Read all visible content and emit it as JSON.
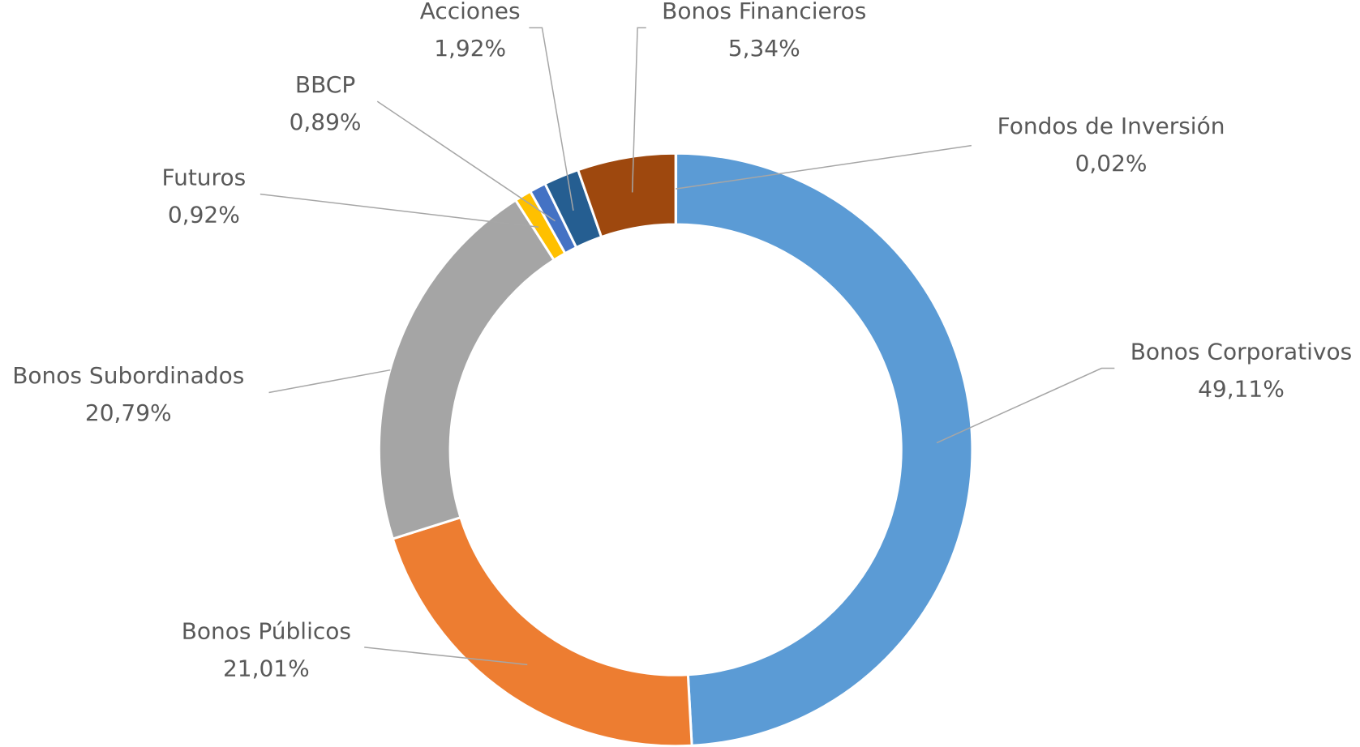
{
  "chart_data": {
    "type": "donut",
    "categories": [
      "Fondos de Inversión",
      "Bonos Corporativos",
      "Bonos Públicos",
      "Bonos Subordinados",
      "Futuros",
      "BBCP",
      "Acciones",
      "Bonos Financieros"
    ],
    "values": [
      0.02,
      49.11,
      21.01,
      20.79,
      0.92,
      0.89,
      1.92,
      5.34
    ],
    "value_labels": [
      "0,02%",
      "49,11%",
      "21,01%",
      "20,79%",
      "0,92%",
      "0,89%",
      "1,92%",
      "5,34%"
    ],
    "colors": [
      "#70AD47",
      "#5B9BD5",
      "#ED7D31",
      "#A5A5A5",
      "#FFC000",
      "#4472C4",
      "#255E91",
      "#9E480E"
    ]
  }
}
